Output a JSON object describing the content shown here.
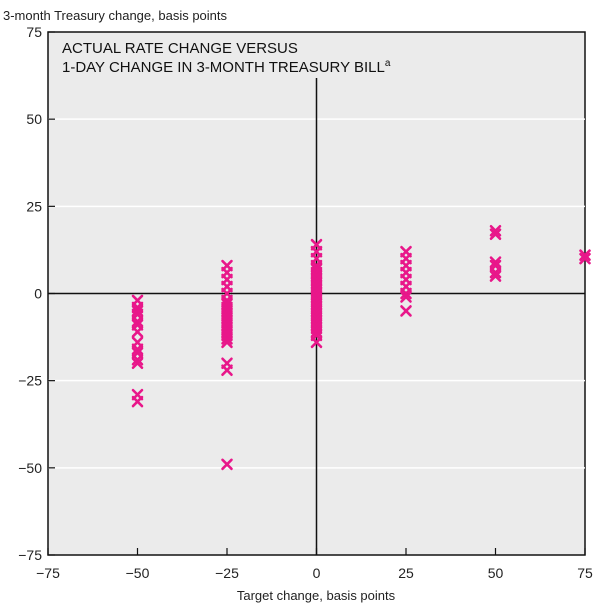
{
  "chart_data": {
    "type": "scatter",
    "title_line1": "ACTUAL RATE CHANGE VERSUS",
    "title_line2": "1-DAY CHANGE IN 3-MONTH TREASURY BILL",
    "title_footnote": "a",
    "xlabel": "Target change, basis points",
    "ylabel": "3-month Treasury change, basis points",
    "xlim": [
      -75,
      75
    ],
    "ylim": [
      -75,
      75
    ],
    "xticks": [
      "−75",
      "−50",
      "−25",
      "0",
      "25",
      "50",
      "75"
    ],
    "yticks": [
      "75",
      "50",
      "25",
      "0",
      "−25",
      "−50",
      "−75"
    ],
    "grid": "horizontal",
    "marker": "x",
    "marker_color": "#e8178a",
    "background_color": "#ebebeb",
    "points": [
      [
        -50,
        -2
      ],
      [
        -50,
        -4
      ],
      [
        -50,
        -5
      ],
      [
        -50,
        -6
      ],
      [
        -50,
        -8
      ],
      [
        -50,
        -9
      ],
      [
        -50,
        -11
      ],
      [
        -50,
        -14
      ],
      [
        -50,
        -16
      ],
      [
        -50,
        -17
      ],
      [
        -50,
        -19
      ],
      [
        -50,
        -20
      ],
      [
        -50,
        -29
      ],
      [
        -50,
        -31
      ],
      [
        -25,
        8
      ],
      [
        -25,
        6
      ],
      [
        -25,
        4
      ],
      [
        -25,
        2
      ],
      [
        -25,
        0
      ],
      [
        -25,
        -2
      ],
      [
        -25,
        -3
      ],
      [
        -25,
        -4
      ],
      [
        -25,
        -5
      ],
      [
        -25,
        -6
      ],
      [
        -25,
        -7
      ],
      [
        -25,
        -8
      ],
      [
        -25,
        -9
      ],
      [
        -25,
        -10
      ],
      [
        -25,
        -11
      ],
      [
        -25,
        -12
      ],
      [
        -25,
        -13
      ],
      [
        -25,
        -14
      ],
      [
        -25,
        -20
      ],
      [
        -25,
        -22
      ],
      [
        -25,
        -49
      ],
      [
        0,
        14
      ],
      [
        0,
        12
      ],
      [
        0,
        10
      ],
      [
        0,
        8
      ],
      [
        0,
        7
      ],
      [
        0,
        6
      ],
      [
        0,
        5
      ],
      [
        0,
        4
      ],
      [
        0,
        3
      ],
      [
        0,
        2
      ],
      [
        0,
        1
      ],
      [
        0,
        0
      ],
      [
        0,
        -1
      ],
      [
        0,
        -2
      ],
      [
        0,
        -3
      ],
      [
        0,
        -4
      ],
      [
        0,
        -5
      ],
      [
        0,
        -6
      ],
      [
        0,
        -7
      ],
      [
        0,
        -8
      ],
      [
        0,
        -9
      ],
      [
        0,
        -10
      ],
      [
        0,
        -11
      ],
      [
        0,
        -12
      ],
      [
        0,
        -14
      ],
      [
        25,
        12
      ],
      [
        25,
        10
      ],
      [
        25,
        8
      ],
      [
        25,
        6
      ],
      [
        25,
        4
      ],
      [
        25,
        2
      ],
      [
        25,
        0
      ],
      [
        25,
        -1
      ],
      [
        25,
        -5
      ],
      [
        50,
        18
      ],
      [
        50,
        17
      ],
      [
        50,
        9
      ],
      [
        50,
        8
      ],
      [
        50,
        6
      ],
      [
        50,
        5
      ],
      [
        75,
        11
      ],
      [
        75,
        10
      ]
    ]
  }
}
